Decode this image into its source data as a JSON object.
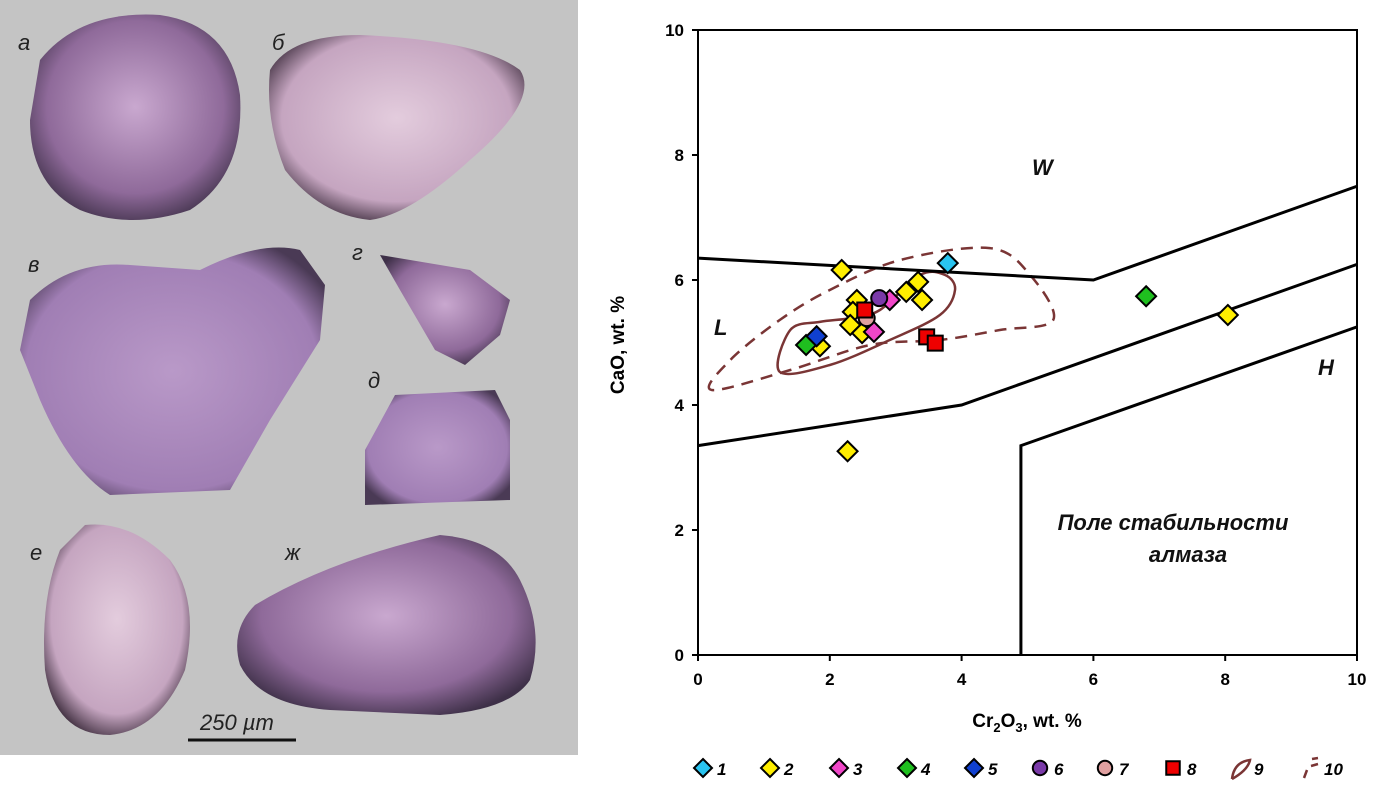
{
  "photos": {
    "labels": [
      "а",
      "б",
      "в",
      "г",
      "д",
      "е",
      "ж"
    ],
    "scale_bar": "250 µm"
  },
  "chart_data": {
    "type": "scatter",
    "xlabel_main": "Cr",
    "xlabel_sub": "2",
    "xlabel_rest": "O",
    "xlabel_sub2": "3",
    "xlabel_tail": ", wt. %",
    "ylabel": "CaO, wt. %",
    "xlim": [
      0,
      10
    ],
    "ylim": [
      0,
      10
    ],
    "xticks": [
      0,
      2,
      4,
      6,
      8,
      10
    ],
    "yticks": [
      0,
      2,
      4,
      6,
      8,
      10
    ],
    "fields": {
      "W": "W",
      "L": "L",
      "H": "H",
      "diamond_line1": "Поле стабильности",
      "diamond_line2": "алмаза"
    },
    "boundaries": [
      [
        [
          0,
          6.35
        ],
        [
          6,
          6.0
        ],
        [
          10,
          7.5
        ]
      ],
      [
        [
          0,
          3.35
        ],
        [
          4,
          4.0
        ],
        [
          10,
          6.25
        ]
      ],
      [
        [
          4.9,
          0
        ],
        [
          4.9,
          3.35
        ],
        [
          10,
          5.25
        ]
      ]
    ],
    "contour_9": [
      [
        1.24,
        4.53
      ],
      [
        1.4,
        5.2
      ],
      [
        1.85,
        5.33
      ],
      [
        2.31,
        5.39
      ],
      [
        2.76,
        5.52
      ],
      [
        3.37,
        6.08
      ],
      [
        3.75,
        6.08
      ],
      [
        3.9,
        5.84
      ],
      [
        3.67,
        5.44
      ],
      [
        2.91,
        5.04
      ],
      [
        2.0,
        4.64
      ]
    ],
    "contour_10": [
      [
        0.21,
        4.24
      ],
      [
        0.49,
        4.72
      ],
      [
        1.24,
        5.36
      ],
      [
        2.0,
        5.84
      ],
      [
        3.07,
        6.32
      ],
      [
        4.43,
        6.51
      ],
      [
        5.04,
        6.08
      ],
      [
        5.39,
        5.36
      ],
      [
        4.58,
        5.2
      ],
      [
        3.67,
        5.04
      ],
      [
        2.61,
        4.96
      ],
      [
        1.4,
        4.56
      ]
    ],
    "series": [
      {
        "name": "1",
        "marker": "diamond",
        "color": "#29c4f0",
        "points": [
          [
            3.79,
            6.27
          ]
        ]
      },
      {
        "name": "2",
        "marker": "diamond",
        "color": "#ffee00",
        "points": [
          [
            2.18,
            6.16
          ],
          [
            2.27,
            3.26
          ],
          [
            8.04,
            5.44
          ],
          [
            3.34,
            5.97
          ],
          [
            2.41,
            5.68
          ],
          [
            2.35,
            5.49
          ],
          [
            2.31,
            5.28
          ],
          [
            2.49,
            5.15
          ],
          [
            3.16,
            5.81
          ],
          [
            3.4,
            5.68
          ],
          [
            1.85,
            4.94
          ]
        ]
      },
      {
        "name": "3",
        "marker": "diamond",
        "color": "#f046c8",
        "points": [
          [
            2.91,
            5.68
          ],
          [
            2.67,
            5.17
          ]
        ]
      },
      {
        "name": "4",
        "marker": "diamond",
        "color": "#1fbf1f",
        "points": [
          [
            1.64,
            4.96
          ],
          [
            6.8,
            5.74
          ]
        ]
      },
      {
        "name": "5",
        "marker": "diamond",
        "color": "#1040d0",
        "points": [
          [
            1.8,
            5.1
          ]
        ]
      },
      {
        "name": "6",
        "marker": "circle",
        "color": "#7a3aa8",
        "points": [
          [
            2.75,
            5.71
          ]
        ]
      },
      {
        "name": "7",
        "marker": "circle",
        "color": "#e0a0a0",
        "points": [
          [
            2.56,
            5.39
          ]
        ]
      },
      {
        "name": "8",
        "marker": "square",
        "color": "#ee0000",
        "points": [
          [
            2.53,
            5.52
          ],
          [
            3.47,
            5.09
          ],
          [
            3.6,
            4.99
          ]
        ]
      }
    ],
    "legend": {
      "placement": "bottom",
      "items": [
        "1",
        "2",
        "3",
        "4",
        "5",
        "6",
        "7",
        "8",
        "9",
        "10"
      ]
    },
    "contour_color": "#7a3535"
  }
}
